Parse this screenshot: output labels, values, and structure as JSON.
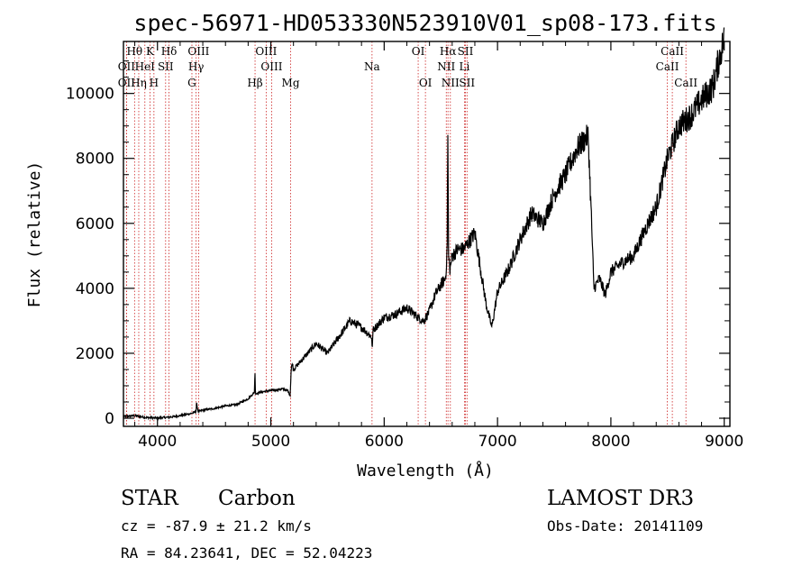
{
  "chart_data": {
    "type": "line",
    "title": "spec-56971-HD053330N523910V01_sp08-173.fits",
    "xlabel": "Wavelength (Å)",
    "ylabel": "Flux (relative)",
    "xlim": [
      3700,
      9050
    ],
    "ylim": [
      -250,
      11600
    ],
    "x_ticks": [
      4000,
      5000,
      6000,
      7000,
      8000,
      9000
    ],
    "y_ticks": [
      0,
      2000,
      4000,
      6000,
      8000,
      10000
    ],
    "x_tick_labels": [
      "4000",
      "5000",
      "6000",
      "7000",
      "8000",
      "9000"
    ],
    "y_tick_labels": [
      "0",
      "2000",
      "4000",
      "6000",
      "8000",
      "10000"
    ],
    "spectrum_x": [
      3700,
      3800,
      3900,
      4000,
      4100,
      4200,
      4300,
      4340,
      4345,
      4360,
      4400,
      4500,
      4600,
      4700,
      4800,
      4855,
      4860,
      4865,
      4900,
      5000,
      5100,
      5150,
      5170,
      5180,
      5190,
      5200,
      5300,
      5400,
      5500,
      5600,
      5700,
      5800,
      5890,
      5895,
      5900,
      6000,
      6100,
      6200,
      6300,
      6350,
      6400,
      6450,
      6500,
      6540,
      6555,
      6562,
      6568,
      6580,
      6600,
      6650,
      6700,
      6800,
      6850,
      6900,
      6950,
      7000,
      7100,
      7200,
      7300,
      7400,
      7500,
      7600,
      7700,
      7800,
      7830,
      7850,
      7900,
      7950,
      8000,
      8100,
      8200,
      8300,
      8400,
      8500,
      8600,
      8700,
      8800,
      8900,
      8950,
      9000
    ],
    "spectrum_y": [
      50,
      80,
      20,
      10,
      30,
      80,
      150,
      200,
      450,
      200,
      250,
      300,
      380,
      420,
      600,
      800,
      1500,
      750,
      800,
      850,
      900,
      850,
      700,
      1500,
      1700,
      1500,
      1900,
      2300,
      2000,
      2500,
      3000,
      2800,
      2500,
      2000,
      2700,
      3100,
      3200,
      3400,
      3100,
      3000,
      3300,
      3800,
      4100,
      4300,
      5000,
      8700,
      5000,
      4600,
      5000,
      5200,
      5200,
      5700,
      4600,
      3500,
      2800,
      3900,
      4600,
      5500,
      6300,
      6000,
      6900,
      7500,
      8300,
      8700,
      6000,
      4000,
      4300,
      3800,
      4500,
      4800,
      5000,
      5800,
      6500,
      8000,
      9000,
      9300,
      9800,
      10200,
      11000,
      11700
    ],
    "emission_lines": [
      {
        "label": "OII",
        "wavelength": 3727,
        "row": 2
      },
      {
        "label": "OII",
        "wavelength": 3727,
        "row": 3
      },
      {
        "label": "Hθ",
        "wavelength": 3798,
        "row": 1
      },
      {
        "label": "HeI",
        "wavelength": 3889,
        "row": 2
      },
      {
        "label": "Hη",
        "wavelength": 3835,
        "row": 3
      },
      {
        "label": "K",
        "wavelength": 3934,
        "row": 1
      },
      {
        "label": "SII",
        "wavelength": 4072,
        "row": 2
      },
      {
        "label": "H",
        "wavelength": 3969,
        "row": 3
      },
      {
        "label": "Hδ",
        "wavelength": 4102,
        "row": 1
      },
      {
        "label": "OIII",
        "wavelength": 4363,
        "row": 1
      },
      {
        "label": "Hγ",
        "wavelength": 4341,
        "row": 2
      },
      {
        "label": "G",
        "wavelength": 4304,
        "row": 3
      },
      {
        "label": "OIII",
        "wavelength": 4959,
        "row": 1
      },
      {
        "label": "OIII",
        "wavelength": 5007,
        "row": 2
      },
      {
        "label": "Hβ",
        "wavelength": 4861,
        "row": 3
      },
      {
        "label": "Mg",
        "wavelength": 5175,
        "row": 3
      },
      {
        "label": "Na",
        "wavelength": 5893,
        "row": 2
      },
      {
        "label": "OI",
        "wavelength": 6300,
        "row": 1
      },
      {
        "label": "OI",
        "wavelength": 6364,
        "row": 3
      },
      {
        "label": "Hα",
        "wavelength": 6563,
        "row": 1
      },
      {
        "label": "NII",
        "wavelength": 6548,
        "row": 2
      },
      {
        "label": "NII",
        "wavelength": 6584,
        "row": 3
      },
      {
        "label": "SII",
        "wavelength": 6717,
        "row": 1
      },
      {
        "label": "Li",
        "wavelength": 6708,
        "row": 2
      },
      {
        "label": "SII",
        "wavelength": 6731,
        "row": 3
      },
      {
        "label": "CaII",
        "wavelength": 8542,
        "row": 1
      },
      {
        "label": "CaII",
        "wavelength": 8498,
        "row": 2
      },
      {
        "label": "CaII",
        "wavelength": 8662,
        "row": 3
      }
    ]
  },
  "info": {
    "class": "STAR",
    "subclass": "Carbon",
    "survey": "LAMOST DR3",
    "cz": "cz = -87.9 ± 21.2 km/s",
    "obs_date": "Obs-Date: 20141109",
    "coords": "RA =  84.23641, DEC =  52.04223"
  },
  "colors": {
    "spectrum": "#000000",
    "line_marker": "#cc2222",
    "axis": "#000000"
  }
}
